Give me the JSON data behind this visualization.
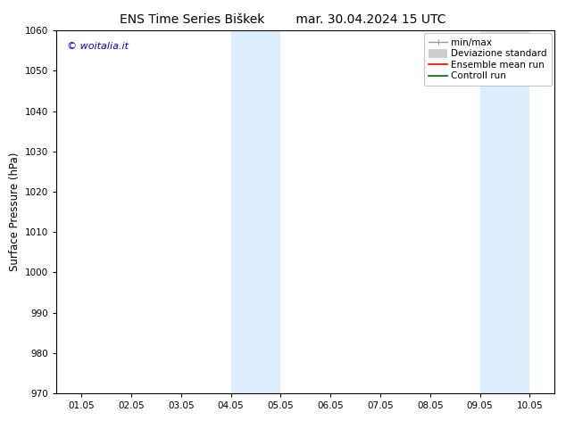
{
  "title_left": "ENS Time Series Biškek",
  "title_right": "mar. 30.04.2024 15 UTC",
  "ylabel": "Surface Pressure (hPa)",
  "ylim": [
    970,
    1060
  ],
  "yticks": [
    970,
    980,
    990,
    1000,
    1010,
    1020,
    1030,
    1040,
    1050,
    1060
  ],
  "xtick_labels": [
    "01.05",
    "02.05",
    "03.05",
    "04.05",
    "05.05",
    "06.05",
    "07.05",
    "08.05",
    "09.05",
    "10.05"
  ],
  "xlim_num": [
    0,
    9
  ],
  "shaded_bands": [
    {
      "x_start": 3.0,
      "x_end": 3.5,
      "color": "#ddeeff"
    },
    {
      "x_start": 3.5,
      "x_end": 4.0,
      "color": "#ddeeff"
    },
    {
      "x_start": 8.0,
      "x_end": 8.5,
      "color": "#ddeeff"
    },
    {
      "x_start": 8.5,
      "x_end": 9.0,
      "color": "#ddeeff"
    }
  ],
  "watermark_text": "© woitalia.it",
  "watermark_color": "#0000cc",
  "bg_color": "#ffffff",
  "title_fontsize": 10,
  "tick_fontsize": 7.5,
  "ylabel_fontsize": 8.5,
  "legend_fontsize": 7.5
}
